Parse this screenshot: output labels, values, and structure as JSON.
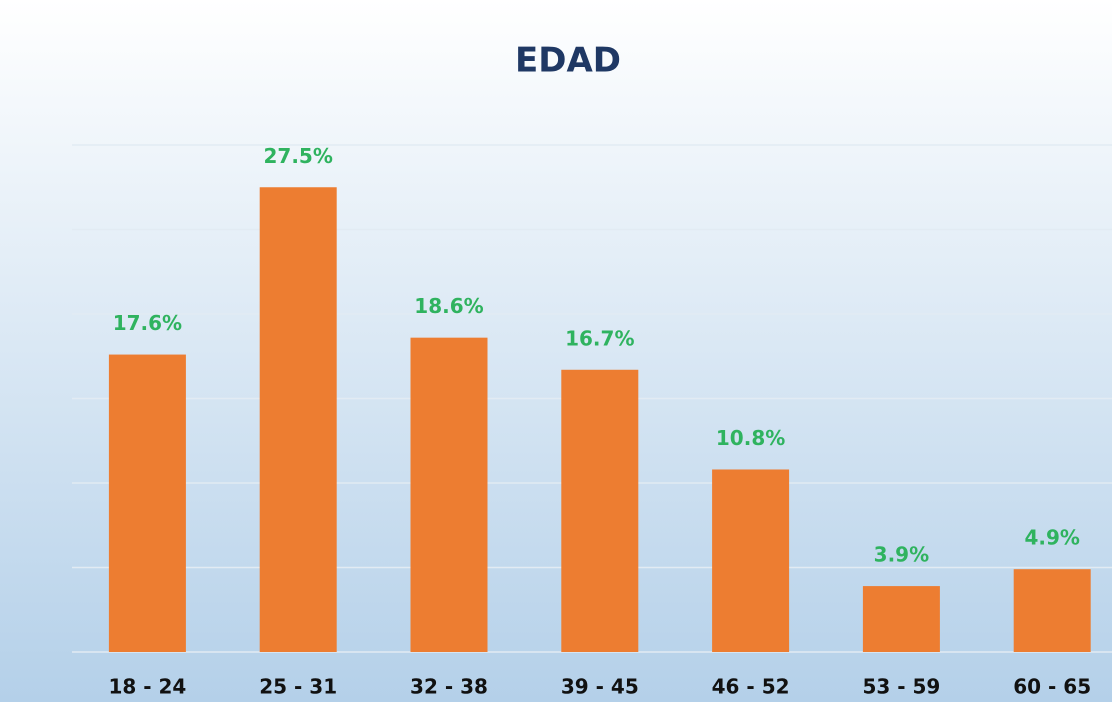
{
  "chart_data": {
    "type": "bar",
    "title": "EDAD",
    "categories": [
      "18 - 24",
      "25 - 31",
      "32 - 38",
      "39 - 45",
      "46 - 52",
      "53 - 59",
      "60 - 65"
    ],
    "values": [
      17.6,
      27.5,
      18.6,
      16.7,
      10.8,
      3.9,
      4.9
    ],
    "value_labels": [
      "17.6%",
      "27.5%",
      "18.6%",
      "16.7%",
      "10.8%",
      "3.9%",
      "4.9%"
    ],
    "color": "#ed7d31",
    "label_color": "#2fb35f",
    "ylim": [
      0,
      30
    ],
    "yticks": [
      0,
      5,
      10,
      15,
      20,
      25,
      30
    ],
    "grid": true
  }
}
